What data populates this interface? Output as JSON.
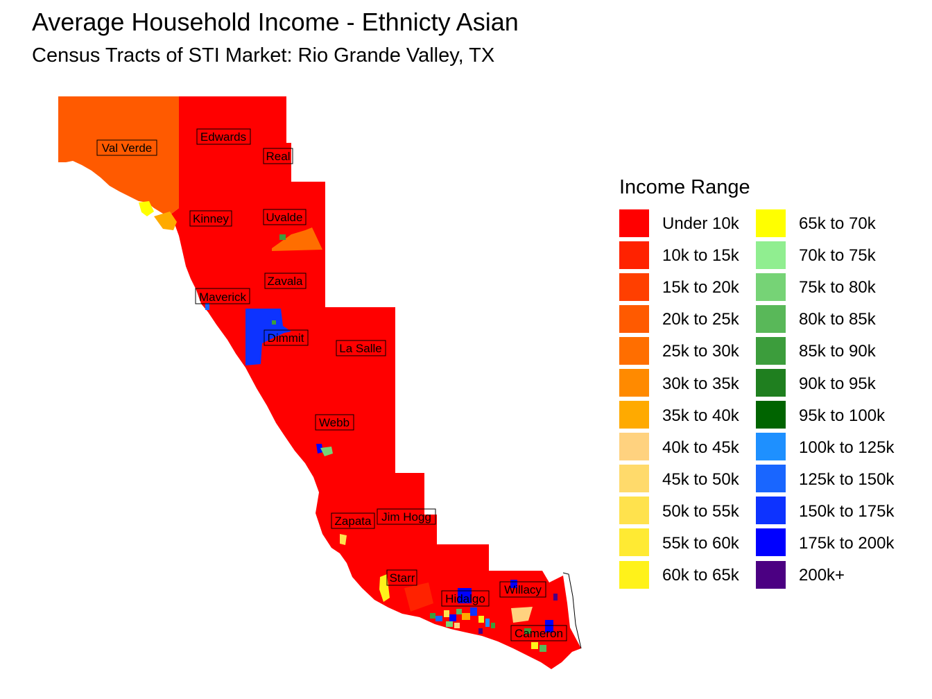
{
  "title": "Average Household Income - Ethnicty Asian",
  "subtitle": "Census Tracts of STI Market: Rio Grande Valley, TX",
  "map": {
    "counties": [
      {
        "id": "val-verde",
        "name": "Val Verde",
        "color": "#FF5500"
      },
      {
        "id": "edwards",
        "name": "Edwards",
        "color": "#FF0000"
      },
      {
        "id": "real",
        "name": "Real",
        "color": "#FF0000"
      },
      {
        "id": "kinney",
        "name": "Kinney",
        "color": "#FF0000"
      },
      {
        "id": "uvalde",
        "name": "Uvalde",
        "color": "#FF0000"
      },
      {
        "id": "zavala",
        "name": "Zavala",
        "color": "#FF0000"
      },
      {
        "id": "maverick",
        "name": "Maverick",
        "color": "#FF0000"
      },
      {
        "id": "dimmit",
        "name": "Dimmit",
        "color": "#FF0000"
      },
      {
        "id": "la-salle",
        "name": "La Salle",
        "color": "#FF0000"
      },
      {
        "id": "webb",
        "name": "Webb",
        "color": "#FF0000"
      },
      {
        "id": "zapata",
        "name": "Zapata",
        "color": "#FF0000"
      },
      {
        "id": "jim-hogg",
        "name": "Jim Hogg",
        "color": "#FF0000"
      },
      {
        "id": "starr",
        "name": "Starr",
        "color": "#FF0000"
      },
      {
        "id": "hidalgo",
        "name": "Hidalgo",
        "color": "#FF0000"
      },
      {
        "id": "willacy",
        "name": "Willacy",
        "color": "#FF0000"
      },
      {
        "id": "cameron",
        "name": "Cameron",
        "color": "#FF0000"
      }
    ]
  },
  "legend": {
    "title": "Income Range",
    "items": [
      {
        "label": "Under 10k",
        "color": "#FF0000"
      },
      {
        "label": "10k to 15k",
        "color": "#FF2200"
      },
      {
        "label": "15k to 20k",
        "color": "#FF3F00"
      },
      {
        "label": "20k to 25k",
        "color": "#FF5A00"
      },
      {
        "label": "25k to 30k",
        "color": "#FF6E00"
      },
      {
        "label": "30k to 35k",
        "color": "#FF8A00"
      },
      {
        "label": "35k to 40k",
        "color": "#FFAA00"
      },
      {
        "label": "40k to 45k",
        "color": "#FFD27F"
      },
      {
        "label": "45k to 50k",
        "color": "#FFDA6B"
      },
      {
        "label": "50k to 55k",
        "color": "#FFE24D"
      },
      {
        "label": "55k to 60k",
        "color": "#FFEA33"
      },
      {
        "label": "60k to 65k",
        "color": "#FFF21A"
      },
      {
        "label": "65k to 70k",
        "color": "#FFFF00"
      },
      {
        "label": "70k to 75k",
        "color": "#90EE90"
      },
      {
        "label": "75k to 80k",
        "color": "#76D376"
      },
      {
        "label": "80k to 85k",
        "color": "#59B859"
      },
      {
        "label": "85k to 90k",
        "color": "#3C9D3C"
      },
      {
        "label": "90k to 95k",
        "color": "#1F7F1F"
      },
      {
        "label": "95k to 100k",
        "color": "#006400"
      },
      {
        "label": "100k to 125k",
        "color": "#1E90FF"
      },
      {
        "label": "125k to 150k",
        "color": "#1966FF"
      },
      {
        "label": "150k to 175k",
        "color": "#0D33FF"
      },
      {
        "label": "175k to 200k",
        "color": "#0000FF"
      },
      {
        "label": "200k+",
        "color": "#4B0082"
      }
    ]
  }
}
